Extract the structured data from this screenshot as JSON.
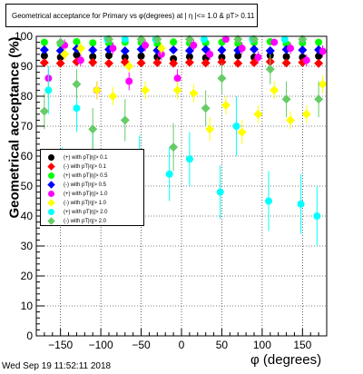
{
  "title": "Geometrical acceptance for Primary vs φ(degrees) at | η |<= 1.0 & pT> 0.11",
  "date_stamp": "Wed Sep 19 11:52:11 2018",
  "colors": {
    "background": "#ffffff",
    "axis": "#000000",
    "grid": "#000000"
  },
  "chart_data": {
    "type": "scatter",
    "title": "Geometrical acceptance for Primary vs φ(degrees) at | η |<= 1.0 & pT> 0.11",
    "xlabel": "φ (degrees)",
    "ylabel": "Geometrical acceptance (%)",
    "xlim": [
      -180,
      180
    ],
    "ylim": [
      0,
      100
    ],
    "grid": true,
    "legend_position": "middle-left",
    "x_ticks": [
      -150,
      -100,
      -50,
      0,
      50,
      100,
      150
    ],
    "x_tick_labels": [
      "−150",
      "−100",
      "−50",
      "0",
      "50",
      "100",
      "150"
    ],
    "y_ticks": [
      0,
      10,
      20,
      30,
      40,
      50,
      60,
      70,
      80,
      90,
      100
    ],
    "y_tick_labels": [
      "0",
      "10",
      "20",
      "30",
      "40",
      "50",
      "60",
      "70",
      "80",
      "90",
      "100"
    ],
    "series": [
      {
        "name": "(+) with pT|η|> 0.1",
        "color": "#000000",
        "x": [
          -170,
          -150,
          -130,
          -110,
          -90,
          -70,
          -50,
          -30,
          -10,
          10,
          30,
          50,
          70,
          90,
          110,
          130,
          150,
          170
        ],
        "y": [
          93.5,
          93.0,
          93.8,
          93.2,
          93.6,
          93.0,
          93.4,
          93.1,
          92.5,
          93.2,
          92.8,
          93.0,
          93.5,
          93.0,
          93.6,
          93.2,
          93.0,
          93.4
        ],
        "err": [
          0.8,
          0.8,
          0.8,
          0.8,
          0.8,
          0.8,
          0.8,
          0.8,
          0.8,
          0.8,
          0.8,
          0.8,
          0.8,
          0.8,
          0.8,
          0.8,
          0.8,
          0.8
        ]
      },
      {
        "name": "(-) with pT|η|> 0.1",
        "color": "#ff0000",
        "x": [
          -170,
          -150,
          -130,
          -110,
          -90,
          -70,
          -50,
          -30,
          -10,
          10,
          30,
          50,
          70,
          90,
          110,
          130,
          150,
          170
        ],
        "y": [
          91.2,
          91.0,
          91.5,
          91.3,
          91.0,
          91.4,
          91.1,
          91.2,
          91.0,
          91.3,
          91.1,
          91.4,
          91.0,
          91.2,
          91.5,
          91.1,
          91.3,
          91.0
        ],
        "err": [
          0.8,
          0.8,
          0.8,
          0.8,
          0.8,
          0.8,
          0.8,
          0.8,
          0.8,
          0.8,
          0.8,
          0.8,
          0.8,
          0.8,
          0.8,
          0.8,
          0.8,
          0.8
        ]
      },
      {
        "name": "(+) with pT|η|> 0.5",
        "color": "#00ff00",
        "x": [
          -170,
          -150,
          -130,
          -110,
          -90,
          -70,
          -50,
          -30,
          -10,
          10,
          30,
          50,
          70,
          90,
          110,
          130,
          150,
          170
        ],
        "y": [
          98.0,
          97.5,
          98.2,
          97.8,
          97.6,
          98.0,
          97.9,
          97.5,
          98.1,
          97.7,
          97.8,
          98.0,
          97.6,
          97.9,
          98.2,
          97.5,
          97.8,
          98.0
        ],
        "err": [
          0.8,
          0.8,
          0.8,
          0.8,
          0.8,
          0.8,
          0.8,
          0.8,
          0.8,
          0.8,
          0.8,
          0.8,
          0.8,
          0.8,
          0.8,
          0.8,
          0.8,
          0.8
        ]
      },
      {
        "name": "(-) with pT|η|> 0.5",
        "color": "#0000ff",
        "x": [
          -170,
          -150,
          -130,
          -110,
          -90,
          -70,
          -50,
          -30,
          -10,
          10,
          30,
          50,
          70,
          90,
          110,
          130,
          150,
          170
        ],
        "y": [
          95.5,
          95.2,
          95.8,
          95.4,
          95.6,
          95.1,
          95.7,
          95.3,
          95.5,
          95.2,
          95.6,
          95.4,
          95.3,
          95.7,
          95.2,
          95.6,
          95.4,
          95.5
        ],
        "err": [
          1.0,
          1.0,
          1.0,
          1.0,
          1.0,
          1.0,
          1.0,
          1.0,
          1.0,
          1.0,
          1.0,
          1.0,
          1.0,
          1.0,
          1.0,
          1.0,
          1.0,
          1.0
        ]
      },
      {
        "name": "(+) with pT|η|> 1.0",
        "color": "#ff00ff",
        "x": [
          -165,
          -145,
          -125,
          -105,
          -85,
          -65,
          -45,
          -25,
          -5,
          15,
          35,
          55,
          75,
          95,
          115,
          135,
          155,
          175
        ],
        "y": [
          86,
          97,
          92,
          82,
          96,
          85,
          97,
          94,
          86,
          97,
          94,
          99,
          96,
          93,
          98,
          96,
          92,
          95
        ],
        "err": [
          3,
          2,
          2,
          3,
          2,
          3,
          2,
          2,
          3,
          2,
          2,
          1,
          2,
          2,
          1,
          2,
          2,
          2
        ]
      },
      {
        "name": "(-) with pT|η|> 1.0",
        "color": "#ffff00",
        "x": [
          -165,
          -145,
          -125,
          -105,
          -85,
          -65,
          -45,
          -25,
          -5,
          15,
          35,
          55,
          75,
          95,
          115,
          135,
          155,
          175
        ],
        "y": [
          82,
          94,
          96,
          82,
          80,
          90,
          82,
          96,
          82,
          81,
          69,
          77,
          68,
          74,
          82,
          72,
          74,
          84
        ],
        "err": [
          3,
          2,
          2,
          3,
          3,
          2,
          3,
          2,
          3,
          3,
          4,
          3,
          4,
          3,
          3,
          3,
          3,
          3
        ]
      },
      {
        "name": "(+) with pT|η|> 2.0",
        "color": "#00ffff",
        "x": [
          -165,
          -148,
          -130,
          -110,
          -92,
          -70,
          -52,
          -32,
          -15,
          10,
          28,
          48,
          68,
          88,
          108,
          128,
          148,
          168
        ],
        "y": [
          82,
          54,
          76,
          60,
          99,
          99,
          58,
          99,
          54,
          59,
          99,
          48,
          70,
          99,
          45,
          99,
          44,
          40
        ],
        "err": [
          8,
          9,
          8,
          9,
          1,
          1,
          9,
          1,
          9,
          9,
          1,
          9,
          10,
          1,
          10,
          1,
          10,
          10
        ]
      },
      {
        "name": "(-) with pT|η|> 2.0",
        "color": "#66cc66",
        "x": [
          -170,
          -150,
          -130,
          -110,
          -90,
          -70,
          -50,
          -30,
          -10,
          10,
          30,
          50,
          70,
          90,
          110,
          130,
          150,
          170
        ],
        "y": [
          75,
          98,
          84,
          69,
          99,
          72,
          99,
          99,
          63,
          99,
          76,
          86,
          99,
          99,
          89,
          79,
          99,
          79
        ],
        "err": [
          6,
          1,
          5,
          7,
          1,
          7,
          1,
          1,
          8,
          1,
          6,
          5,
          1,
          1,
          5,
          6,
          1,
          6
        ]
      }
    ]
  }
}
